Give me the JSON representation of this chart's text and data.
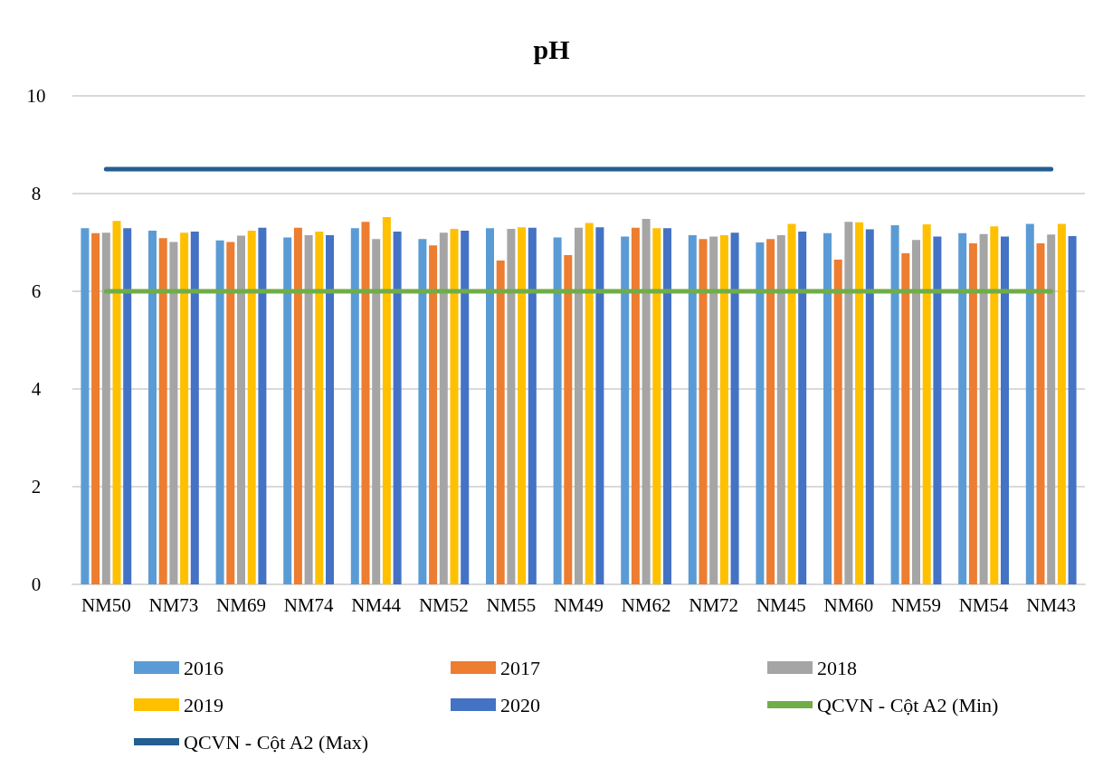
{
  "chart_data": {
    "type": "bar",
    "title": "pH",
    "categories": [
      "NM50",
      "NM73",
      "NM69",
      "NM74",
      "NM44",
      "NM52",
      "NM55",
      "NM49",
      "NM62",
      "NM72",
      "NM45",
      "NM60",
      "NM59",
      "NM54",
      "NM43"
    ],
    "series": [
      {
        "name": "2016",
        "color": "#5b9bd5",
        "values": [
          7.29,
          7.24,
          7.04,
          7.1,
          7.29,
          7.07,
          7.29,
          7.1,
          7.12,
          7.15,
          7.0,
          7.19,
          7.35,
          7.19,
          7.38
        ]
      },
      {
        "name": "2017",
        "color": "#ed7d31",
        "values": [
          7.19,
          7.09,
          7.01,
          7.3,
          7.42,
          6.94,
          6.63,
          6.74,
          7.3,
          7.07,
          7.07,
          6.65,
          6.78,
          6.98,
          6.98
        ]
      },
      {
        "name": "2018",
        "color": "#a5a5a5",
        "values": [
          7.2,
          7.01,
          7.14,
          7.15,
          7.07,
          7.2,
          7.28,
          7.3,
          7.48,
          7.12,
          7.15,
          7.42,
          7.05,
          7.17,
          7.16
        ]
      },
      {
        "name": "2019",
        "color": "#ffc000",
        "values": [
          7.44,
          7.2,
          7.24,
          7.22,
          7.52,
          7.28,
          7.31,
          7.4,
          7.29,
          7.15,
          7.38,
          7.41,
          7.37,
          7.33,
          7.38
        ]
      },
      {
        "name": "2020",
        "color": "#4472c4",
        "values": [
          7.29,
          7.22,
          7.3,
          7.15,
          7.22,
          7.24,
          7.3,
          7.31,
          7.29,
          7.2,
          7.22,
          7.27,
          7.12,
          7.12,
          7.13
        ]
      },
      {
        "name": "QCVN - Cột A2 (Min)",
        "type": "line",
        "color": "#70ad47",
        "values": [
          6,
          6,
          6,
          6,
          6,
          6,
          6,
          6,
          6,
          6,
          6,
          6,
          6,
          6,
          6
        ]
      },
      {
        "name": "QCVN - Cột A2 (Max)",
        "type": "line",
        "color": "#255e91",
        "values": [
          8.5,
          8.5,
          8.5,
          8.5,
          8.5,
          8.5,
          8.5,
          8.5,
          8.5,
          8.5,
          8.5,
          8.5,
          8.5,
          8.5,
          8.5
        ]
      }
    ],
    "ylim": [
      0,
      10
    ],
    "yticks": [
      0,
      2,
      4,
      6,
      8,
      10
    ],
    "grid": "y",
    "legend": "bottom",
    "marker": "none"
  }
}
